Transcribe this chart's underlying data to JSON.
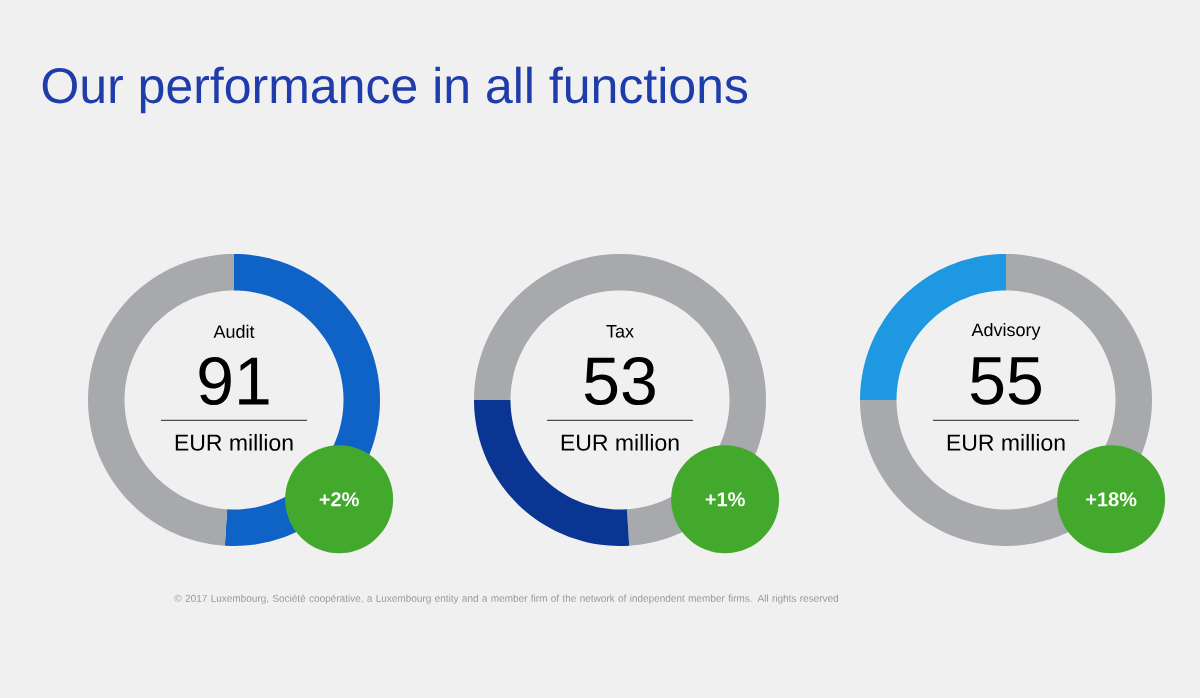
{
  "chart_data": [
    {
      "type": "donut",
      "title": "Our performance in all functions",
      "categories": [
        null,
        null
      ],
      "values": [
        51,
        49
      ],
      "colors": [
        "#0f62c6",
        "#a7a9ac"
      ],
      "annotations": [
        "Audit",
        "91",
        "EUR million",
        "+2%",
        "© 2017 Luxembourg, Société coopérative, a Luxembourg entity and a member firm of the network of independent member firms. All rights reserved"
      ]
    },
    {
      "type": "donut",
      "categories": [
        null,
        null,
        null
      ],
      "values": [
        49,
        26,
        25
      ],
      "colors": [
        "#a7a9ac",
        "#0a3593",
        "#a7a9ac"
      ],
      "annotations": [
        "Tax",
        "53",
        "EUR million",
        "+1%"
      ]
    },
    {
      "type": "donut",
      "categories": [
        null,
        null
      ],
      "values": [
        75,
        25
      ],
      "colors": [
        "#a7a9ac",
        "#1e98e0"
      ],
      "annotations": [
        "Advisory",
        "55",
        "EUR million",
        "+18%"
      ]
    }
  ]
}
